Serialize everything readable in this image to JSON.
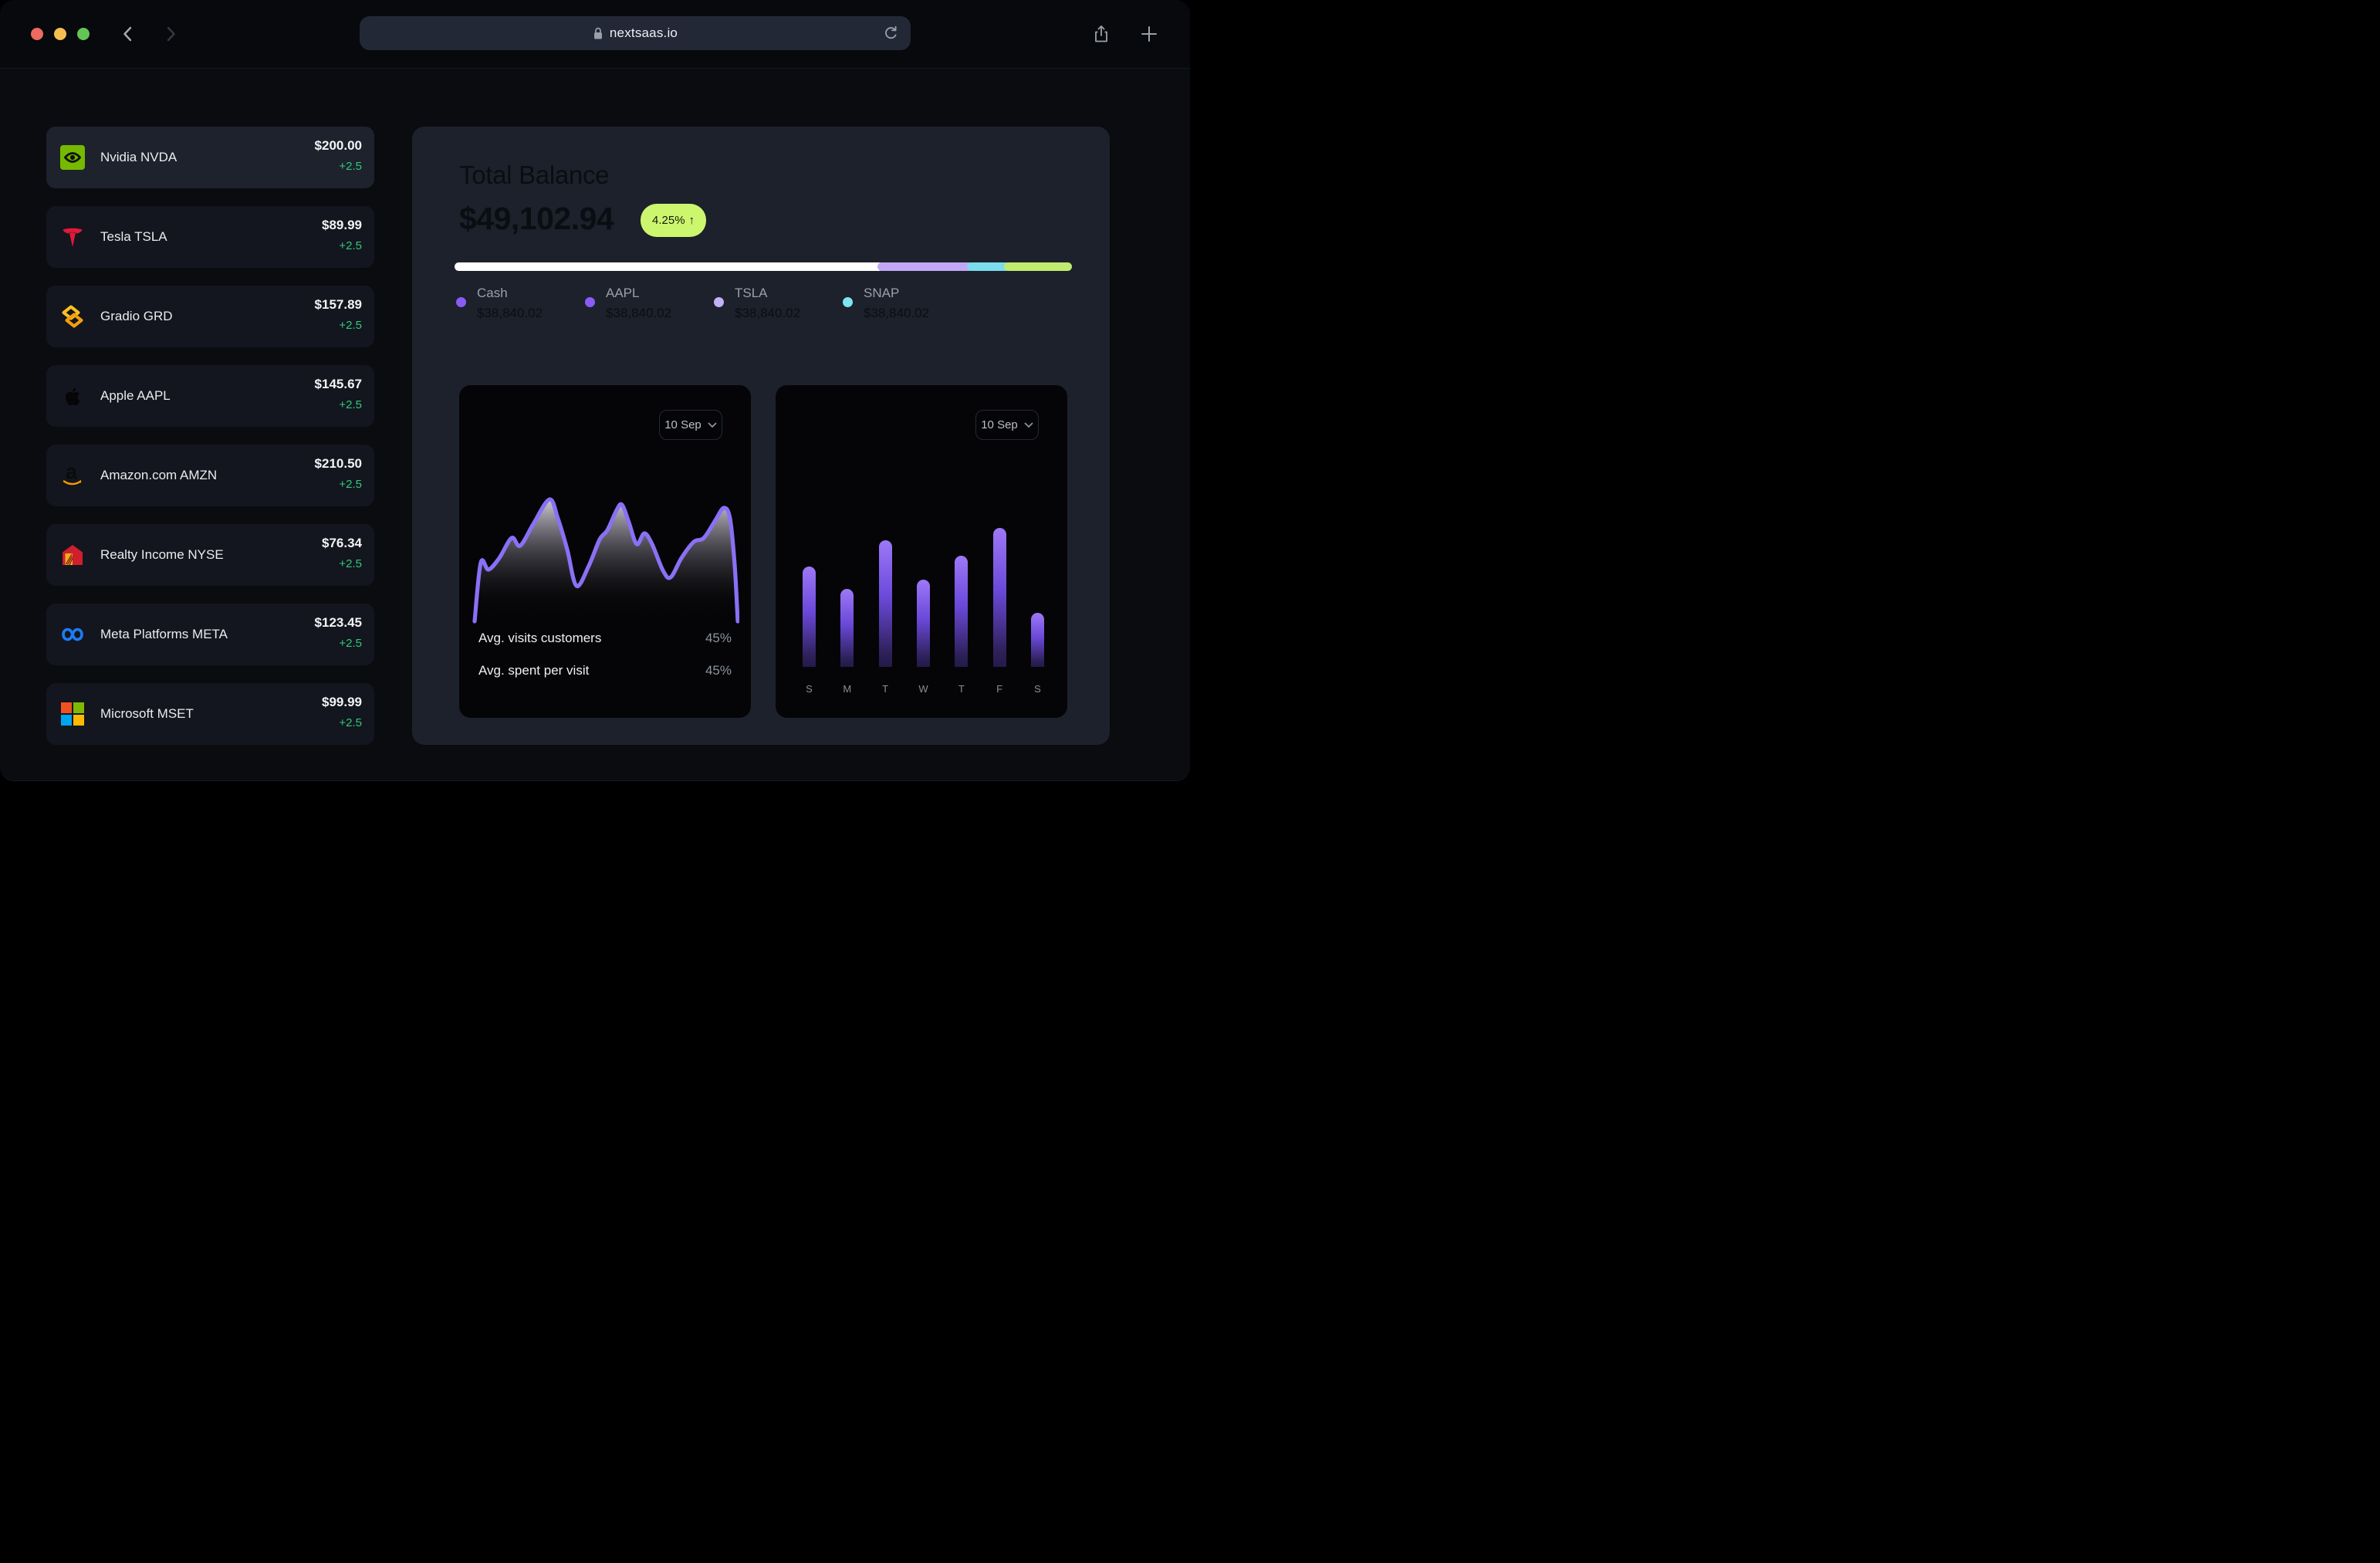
{
  "browser": {
    "url": "nextsaas.io",
    "traffic_light_colors": [
      "#ed6a5e",
      "#f5bf4f",
      "#62c554"
    ]
  },
  "watchlist": [
    {
      "label": "Nvidia NVDA",
      "price": "$200.00",
      "change": "+2.5",
      "logo": "nvidia"
    },
    {
      "label": "Tesla TSLA",
      "price": "$89.99",
      "change": "+2.5",
      "logo": "tesla"
    },
    {
      "label": "Gradio GRD",
      "price": "$157.89",
      "change": "+2.5",
      "logo": "gradio"
    },
    {
      "label": "Apple AAPL",
      "price": "$145.67",
      "change": "+2.5",
      "logo": "apple"
    },
    {
      "label": "Amazon.com AMZN",
      "price": "$210.50",
      "change": "+2.5",
      "logo": "amazon"
    },
    {
      "label": "Realty Income NYSE",
      "price": "$76.34",
      "change": "+2.5",
      "logo": "realty-income"
    },
    {
      "label": "Meta Platforms META",
      "price": "$123.45",
      "change": "+2.5",
      "logo": "meta"
    },
    {
      "label": "Microsoft MSET",
      "price": "$99.99",
      "change": "+2.5",
      "logo": "microsoft"
    }
  ],
  "balance": {
    "title": "Total Balance",
    "amount": "$49,102.94",
    "badge_value": "4.25%",
    "badge_arrow": "↑",
    "badge_color": "#cdf66f"
  },
  "allocation": {
    "segments": [
      {
        "name": "cash",
        "pct": 69.5,
        "color": "#ffffff"
      },
      {
        "name": "aapl",
        "pct": 14.5,
        "color": "#c2a8f4"
      },
      {
        "name": "tsla",
        "pct": 6,
        "color": "#7bdceb"
      },
      {
        "name": "snap",
        "pct": 10,
        "color": "#c1ea70"
      }
    ],
    "legend": [
      {
        "label": "Cash",
        "value": "$38,840.02",
        "color": "#8a5cf5"
      },
      {
        "label": "AAPL",
        "value": "$38,840.02",
        "color": "#8a5cf5"
      },
      {
        "label": "TSLA",
        "value": "$38,840.02",
        "color": "#c3b1f7"
      },
      {
        "label": "SNAP",
        "value": "$38,840.02",
        "color": "#7de4f0"
      }
    ]
  },
  "visits_card": {
    "dropdown_label": "10 Sep",
    "line_color": "#8a70f5",
    "chart_data": {
      "type": "area",
      "points": [
        [
          4,
          188
        ],
        [
          12,
          112
        ],
        [
          22,
          121
        ],
        [
          36,
          106
        ],
        [
          52,
          80
        ],
        [
          63,
          90
        ],
        [
          80,
          62
        ],
        [
          101,
          30
        ],
        [
          112,
          55
        ],
        [
          124,
          95
        ],
        [
          136,
          142
        ],
        [
          152,
          116
        ],
        [
          166,
          82
        ],
        [
          176,
          70
        ],
        [
          188,
          44
        ],
        [
          195,
          37
        ],
        [
          204,
          60
        ],
        [
          214,
          88
        ],
        [
          224,
          74
        ],
        [
          234,
          88
        ],
        [
          248,
          122
        ],
        [
          258,
          131
        ],
        [
          272,
          106
        ],
        [
          288,
          85
        ],
        [
          301,
          80
        ],
        [
          316,
          57
        ],
        [
          327,
          41
        ],
        [
          335,
          55
        ],
        [
          341,
          115
        ],
        [
          345,
          188
        ]
      ]
    },
    "stats": [
      {
        "label": "Avg. visits customers",
        "value": "45%"
      },
      {
        "label": "Avg. spent per visit",
        "value": "45%"
      }
    ]
  },
  "bars_card": {
    "dropdown_label": "10 Sep",
    "chart_data": {
      "type": "bar",
      "categories": [
        "S",
        "M",
        "T",
        "W",
        "T",
        "F",
        "S"
      ],
      "values": [
        72,
        56,
        91,
        63,
        80,
        100,
        39
      ],
      "unit": "percent_of_tallest_bar"
    }
  }
}
